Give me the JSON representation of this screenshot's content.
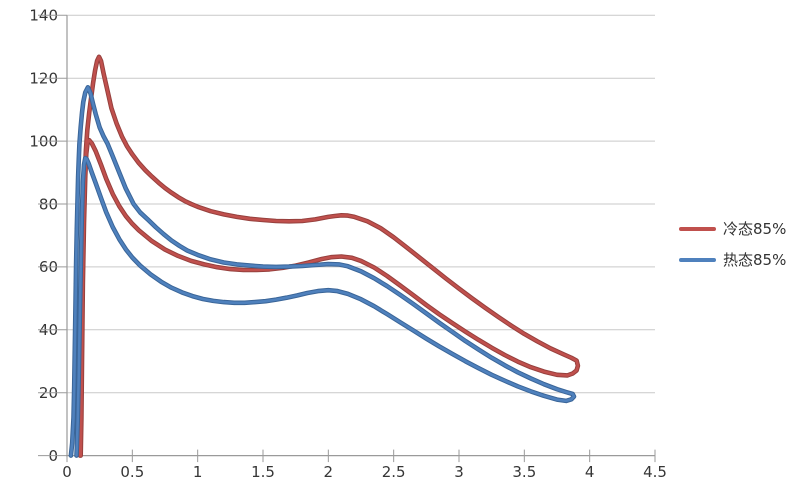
{
  "page": {
    "background": "#FFFFFF"
  },
  "chart_data": {
    "type": "line",
    "title": "",
    "xlabel": "",
    "ylabel": "",
    "xlim": [
      0,
      4.5
    ],
    "ylim": [
      0,
      140
    ],
    "grid": "horizontal-only",
    "legend_position": "right",
    "axis_color": "#9A9A9A",
    "gridline_color": "#C9C9C9",
    "tick_label_color": "#363636",
    "tick_font_size": 15,
    "x_tick_labels": [
      "0",
      "0.5",
      "1",
      "1.5",
      "2",
      "2.5",
      "3",
      "3.5",
      "4",
      "4.5"
    ],
    "x_tick_values": [
      0,
      0.5,
      1,
      1.5,
      2,
      2.5,
      3,
      3.5,
      4,
      4.5
    ],
    "y_tick_labels": [
      "0",
      "20",
      "40",
      "60",
      "80",
      "100",
      "120",
      "140"
    ],
    "y_tick_values": [
      0,
      20,
      40,
      60,
      80,
      100,
      120,
      140
    ],
    "series": [
      {
        "name": "冷态85%",
        "color": "#C0504D",
        "edge_color": "#96403D",
        "points": [
          [
            0.105,
            0
          ],
          [
            0.11,
            12
          ],
          [
            0.115,
            30
          ],
          [
            0.12,
            50
          ],
          [
            0.125,
            67
          ],
          [
            0.13,
            80
          ],
          [
            0.135,
            88
          ],
          [
            0.145,
            97
          ],
          [
            0.155,
            103.5
          ],
          [
            0.17,
            109
          ],
          [
            0.185,
            114
          ],
          [
            0.2,
            118.5
          ],
          [
            0.215,
            122.5
          ],
          [
            0.23,
            125.5
          ],
          [
            0.245,
            126.8
          ],
          [
            0.26,
            125.5
          ],
          [
            0.28,
            121.5
          ],
          [
            0.31,
            116
          ],
          [
            0.34,
            110.5
          ],
          [
            0.38,
            105.5
          ],
          [
            0.42,
            101.5
          ],
          [
            0.46,
            98.3
          ],
          [
            0.5,
            95.8
          ],
          [
            0.55,
            93
          ],
          [
            0.6,
            90.7
          ],
          [
            0.65,
            88.7
          ],
          [
            0.7,
            86.8
          ],
          [
            0.75,
            85.1
          ],
          [
            0.8,
            83.6
          ],
          [
            0.85,
            82.2
          ],
          [
            0.9,
            81
          ],
          [
            0.95,
            80
          ],
          [
            1.0,
            79.1
          ],
          [
            1.1,
            77.7
          ],
          [
            1.2,
            76.7
          ],
          [
            1.3,
            75.9
          ],
          [
            1.4,
            75.3
          ],
          [
            1.5,
            74.9
          ],
          [
            1.6,
            74.6
          ],
          [
            1.7,
            74.5
          ],
          [
            1.8,
            74.6
          ],
          [
            1.9,
            75.1
          ],
          [
            2.0,
            75.9
          ],
          [
            2.05,
            76.2
          ],
          [
            2.1,
            76.4
          ],
          [
            2.15,
            76.3
          ],
          [
            2.2,
            75.9
          ],
          [
            2.3,
            74.5
          ],
          [
            2.4,
            72.3
          ],
          [
            2.5,
            69.4
          ],
          [
            2.6,
            66.2
          ],
          [
            2.7,
            62.9
          ],
          [
            2.8,
            59.6
          ],
          [
            2.9,
            56.3
          ],
          [
            3.0,
            53.1
          ],
          [
            3.1,
            50
          ],
          [
            3.2,
            47
          ],
          [
            3.3,
            44.1
          ],
          [
            3.4,
            41.3
          ],
          [
            3.5,
            38.7
          ],
          [
            3.6,
            36.3
          ],
          [
            3.7,
            34.1
          ],
          [
            3.8,
            32.2
          ],
          [
            3.86,
            31.1
          ],
          [
            3.9,
            30.2
          ],
          [
            3.91,
            28.6
          ],
          [
            3.9,
            27.1
          ],
          [
            3.87,
            26.1
          ],
          [
            3.83,
            25.5
          ],
          [
            3.75,
            25.7
          ],
          [
            3.65,
            26.7
          ],
          [
            3.55,
            28.1
          ],
          [
            3.45,
            29.9
          ],
          [
            3.35,
            32
          ],
          [
            3.25,
            34.3
          ],
          [
            3.15,
            36.8
          ],
          [
            3.05,
            39.4
          ],
          [
            2.95,
            42.1
          ],
          [
            2.85,
            44.9
          ],
          [
            2.75,
            47.9
          ],
          [
            2.65,
            51
          ],
          [
            2.55,
            54.1
          ],
          [
            2.45,
            57.1
          ],
          [
            2.35,
            59.8
          ],
          [
            2.25,
            61.9
          ],
          [
            2.18,
            62.9
          ],
          [
            2.1,
            63.3
          ],
          [
            2.02,
            63.1
          ],
          [
            1.95,
            62.5
          ],
          [
            1.85,
            61.4
          ],
          [
            1.75,
            60.4
          ],
          [
            1.65,
            59.7
          ],
          [
            1.55,
            59.2
          ],
          [
            1.45,
            59
          ],
          [
            1.35,
            59
          ],
          [
            1.25,
            59.3
          ],
          [
            1.15,
            59.9
          ],
          [
            1.05,
            60.8
          ],
          [
            0.95,
            61.9
          ],
          [
            0.85,
            63.5
          ],
          [
            0.75,
            65.5
          ],
          [
            0.65,
            68.2
          ],
          [
            0.55,
            71.6
          ],
          [
            0.5,
            73.7
          ],
          [
            0.45,
            76.2
          ],
          [
            0.4,
            79.3
          ],
          [
            0.35,
            83.2
          ],
          [
            0.3,
            88
          ],
          [
            0.26,
            92.5
          ],
          [
            0.22,
            96.8
          ],
          [
            0.19,
            99.3
          ],
          [
            0.17,
            100.3
          ],
          [
            0.158,
            99.6
          ],
          [
            0.148,
            96
          ],
          [
            0.14,
            89
          ],
          [
            0.13,
            74
          ],
          [
            0.12,
            52
          ],
          [
            0.11,
            27
          ],
          [
            0.103,
            8
          ],
          [
            0.1,
            0
          ]
        ]
      },
      {
        "name": "热态85%",
        "color": "#4F81BD",
        "edge_color": "#3A6598",
        "points": [
          [
            0.03,
            0
          ],
          [
            0.04,
            4
          ],
          [
            0.05,
            12
          ],
          [
            0.055,
            22
          ],
          [
            0.06,
            34
          ],
          [
            0.065,
            48
          ],
          [
            0.07,
            61
          ],
          [
            0.075,
            72
          ],
          [
            0.08,
            81
          ],
          [
            0.085,
            88.5
          ],
          [
            0.09,
            94.5
          ],
          [
            0.095,
            99
          ],
          [
            0.105,
            104.5
          ],
          [
            0.115,
            109
          ],
          [
            0.125,
            112.5
          ],
          [
            0.14,
            115.5
          ],
          [
            0.16,
            117.1
          ],
          [
            0.18,
            115.2
          ],
          [
            0.2,
            111.8
          ],
          [
            0.22,
            108.6
          ],
          [
            0.25,
            104.3
          ],
          [
            0.28,
            101.5
          ],
          [
            0.31,
            99.2
          ],
          [
            0.35,
            95.2
          ],
          [
            0.4,
            90
          ],
          [
            0.45,
            84.9
          ],
          [
            0.51,
            80
          ],
          [
            0.56,
            77.3
          ],
          [
            0.62,
            75
          ],
          [
            0.68,
            72.6
          ],
          [
            0.74,
            70.4
          ],
          [
            0.8,
            68.4
          ],
          [
            0.86,
            66.7
          ],
          [
            0.92,
            65.2
          ],
          [
            1.0,
            63.8
          ],
          [
            1.1,
            62.4
          ],
          [
            1.2,
            61.4
          ],
          [
            1.3,
            60.8
          ],
          [
            1.4,
            60.4
          ],
          [
            1.5,
            60.1
          ],
          [
            1.6,
            60.0
          ],
          [
            1.7,
            60.1
          ],
          [
            1.8,
            60.3
          ],
          [
            1.9,
            60.6
          ],
          [
            2.0,
            60.9
          ],
          [
            2.08,
            60.8
          ],
          [
            2.15,
            60.2
          ],
          [
            2.25,
            58.6
          ],
          [
            2.35,
            56.4
          ],
          [
            2.45,
            53.9
          ],
          [
            2.55,
            51.1
          ],
          [
            2.65,
            48.2
          ],
          [
            2.75,
            45.2
          ],
          [
            2.85,
            42.2
          ],
          [
            2.95,
            39.3
          ],
          [
            3.05,
            36.4
          ],
          [
            3.15,
            33.7
          ],
          [
            3.25,
            31.1
          ],
          [
            3.35,
            28.7
          ],
          [
            3.45,
            26.5
          ],
          [
            3.55,
            24.5
          ],
          [
            3.65,
            22.7
          ],
          [
            3.75,
            21.1
          ],
          [
            3.82,
            20.2
          ],
          [
            3.87,
            19.6
          ],
          [
            3.88,
            18.8
          ],
          [
            3.86,
            17.9
          ],
          [
            3.82,
            17.4
          ],
          [
            3.75,
            17.8
          ],
          [
            3.65,
            19
          ],
          [
            3.55,
            20.4
          ],
          [
            3.45,
            22
          ],
          [
            3.35,
            23.8
          ],
          [
            3.25,
            25.7
          ],
          [
            3.15,
            27.8
          ],
          [
            3.05,
            30
          ],
          [
            2.95,
            32.3
          ],
          [
            2.85,
            34.7
          ],
          [
            2.75,
            37.2
          ],
          [
            2.65,
            39.8
          ],
          [
            2.55,
            42.4
          ],
          [
            2.45,
            45
          ],
          [
            2.35,
            47.5
          ],
          [
            2.25,
            49.7
          ],
          [
            2.15,
            51.4
          ],
          [
            2.07,
            52.3
          ],
          [
            2.0,
            52.6
          ],
          [
            1.92,
            52.3
          ],
          [
            1.84,
            51.7
          ],
          [
            1.76,
            50.9
          ],
          [
            1.68,
            50.2
          ],
          [
            1.6,
            49.6
          ],
          [
            1.52,
            49.1
          ],
          [
            1.44,
            48.8
          ],
          [
            1.36,
            48.6
          ],
          [
            1.28,
            48.6
          ],
          [
            1.2,
            48.8
          ],
          [
            1.12,
            49.2
          ],
          [
            1.04,
            49.8
          ],
          [
            0.96,
            50.7
          ],
          [
            0.88,
            51.9
          ],
          [
            0.8,
            53.4
          ],
          [
            0.72,
            55.3
          ],
          [
            0.64,
            57.6
          ],
          [
            0.56,
            60.4
          ],
          [
            0.5,
            63
          ],
          [
            0.45,
            65.6
          ],
          [
            0.4,
            68.8
          ],
          [
            0.35,
            72.7
          ],
          [
            0.3,
            77.4
          ],
          [
            0.26,
            81.9
          ],
          [
            0.22,
            86.6
          ],
          [
            0.19,
            90
          ],
          [
            0.165,
            92.9
          ],
          [
            0.15,
            94.3
          ],
          [
            0.14,
            94.6
          ],
          [
            0.13,
            92.5
          ],
          [
            0.122,
            87
          ],
          [
            0.114,
            77
          ],
          [
            0.106,
            62
          ],
          [
            0.098,
            44
          ],
          [
            0.09,
            26
          ],
          [
            0.082,
            11
          ],
          [
            0.076,
            3
          ],
          [
            0.073,
            0
          ]
        ]
      }
    ]
  }
}
